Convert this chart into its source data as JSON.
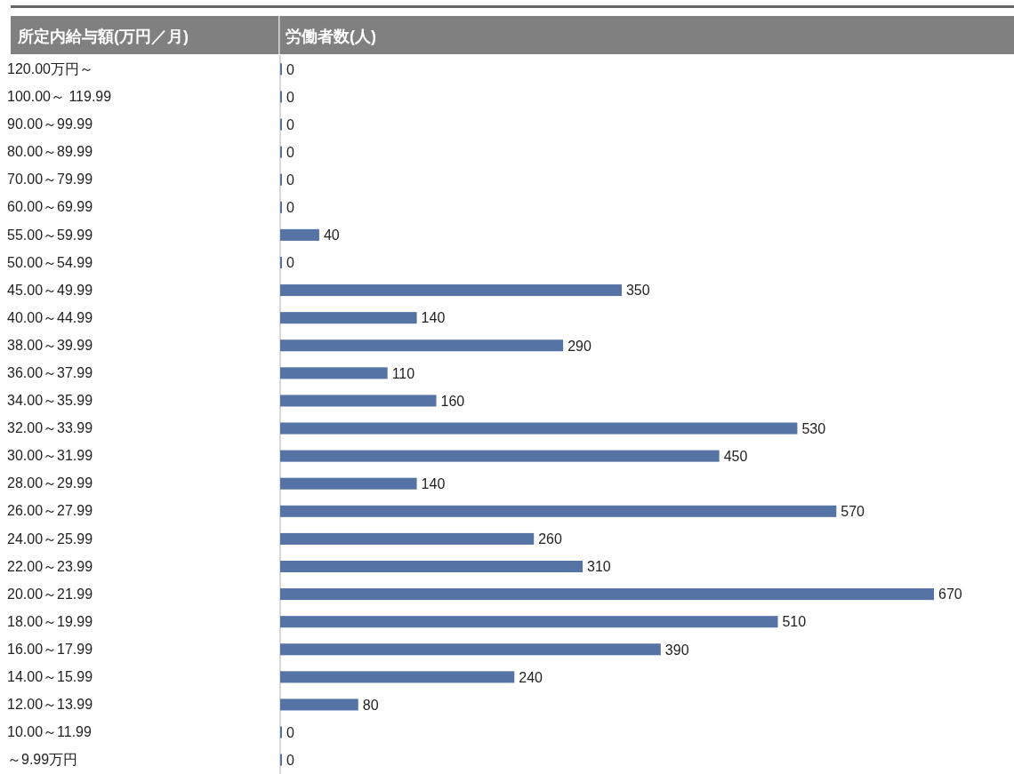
{
  "chart_data": {
    "type": "bar",
    "orientation": "horizontal",
    "ylabel": "所定内給与額(万円／月)",
    "xlabel": "労働者数(人)",
    "categories": [
      "120.00万円～",
      "100.00～ 119.99",
      "90.00～99.99",
      "80.00～89.99",
      "70.00～79.99",
      "60.00～69.99",
      "55.00～59.99",
      "50.00～54.99",
      "45.00～49.99",
      "40.00～44.99",
      "38.00～39.99",
      "36.00～37.99",
      "34.00～35.99",
      "32.00～33.99",
      "30.00～31.99",
      "28.00～29.99",
      "26.00～27.99",
      "24.00～25.99",
      "22.00～23.99",
      "20.00～21.99",
      "18.00～19.99",
      "16.00～17.99",
      "14.00～15.99",
      "12.00～13.99",
      "10.00～11.99",
      "～9.99万円"
    ],
    "values": [
      0,
      0,
      0,
      0,
      0,
      0,
      40,
      0,
      350,
      140,
      290,
      110,
      160,
      530,
      450,
      140,
      570,
      260,
      310,
      670,
      510,
      390,
      240,
      80,
      0,
      0
    ],
    "color": "#5673a6",
    "data_labels": true,
    "tick_labels": "y"
  }
}
